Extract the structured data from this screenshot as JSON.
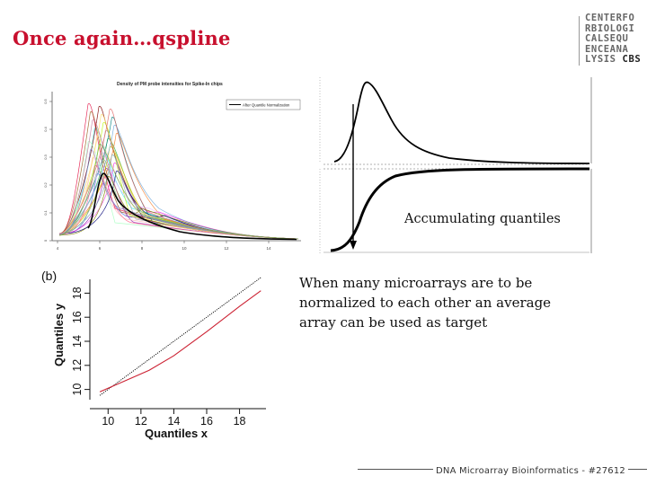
{
  "slide": {
    "title": "Once again…qspline",
    "body_text": "When many microarrays are to be normalized to each other an average array can be used as target",
    "footer": "DNA Microarray Bioinformatics - #27612"
  },
  "logo": {
    "lines": [
      "CENTERFO",
      "RBIOLOGI",
      "CALSEQU",
      "ENCEANA",
      "LYSIS"
    ],
    "suffix": "CBS"
  },
  "density_plot": {
    "title": "Density of PM probe intensities for Spike-In chips",
    "legend": "After Quantile Normalization",
    "x_ticks": [
      "4",
      "6",
      "8",
      "10",
      "12",
      "14"
    ],
    "y_ticks": [
      "0",
      "0.1",
      "0.2",
      "0.3",
      "0.4",
      "0.5"
    ]
  },
  "cumulative_diagram": {
    "label": "Accumulating quantiles"
  },
  "chart_data": {
    "type": "line",
    "panel_label": "(b)",
    "xlabel": "Quantiles x",
    "ylabel": "Quantiles y",
    "xlim": [
      9,
      19.5
    ],
    "ylim": [
      9,
      19
    ],
    "x_ticks": [
      10,
      12,
      14,
      16,
      18
    ],
    "y_ticks": [
      10,
      12,
      14,
      16,
      18
    ],
    "series": [
      {
        "color": "#000000",
        "style": "dotted",
        "x": [
          9.5,
          19.3
        ],
        "y": [
          9.5,
          19.3
        ]
      },
      {
        "color": "#cc2233",
        "style": "solid",
        "x": [
          9.5,
          11,
          12.5,
          14,
          16,
          18,
          19.3
        ],
        "y": [
          9.8,
          10.7,
          11.6,
          12.8,
          14.8,
          16.9,
          18.2
        ]
      }
    ]
  },
  "colors": {
    "title": "#c8102e",
    "qq_line": "#cc2233"
  }
}
